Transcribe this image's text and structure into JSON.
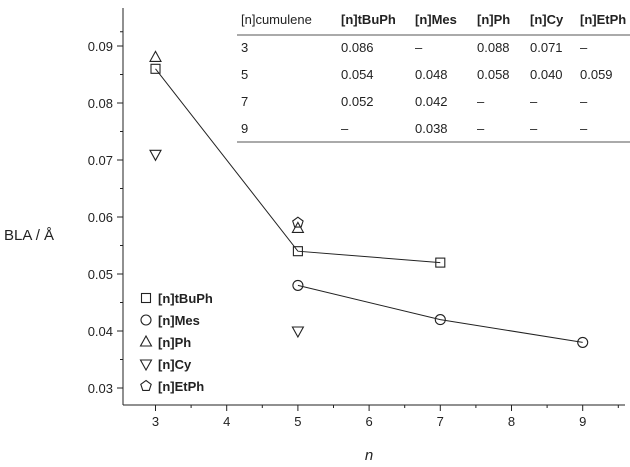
{
  "chart_data": {
    "type": "scatter",
    "xlabel": "n",
    "ylabel": "BLA / Å",
    "xlim": [
      2.5,
      9.5
    ],
    "ylim": [
      0.025,
      0.0925
    ],
    "xticks": [
      "3",
      "4",
      "5",
      "6",
      "7",
      "8",
      "9"
    ],
    "yticks": [
      "0.03",
      "0.04",
      "0.05",
      "0.06",
      "0.07",
      "0.08",
      "0.09"
    ],
    "series": [
      {
        "name": "[n]tBuPh",
        "marker": "square",
        "connected": true,
        "x": [
          3,
          5,
          7
        ],
        "y": [
          0.086,
          0.054,
          0.052
        ]
      },
      {
        "name": "[n]Mes",
        "marker": "circle",
        "connected": true,
        "x": [
          5,
          7,
          9
        ],
        "y": [
          0.048,
          0.042,
          0.038
        ]
      },
      {
        "name": "[n]Ph",
        "marker": "triangle-up",
        "connected": false,
        "x": [
          3,
          5
        ],
        "y": [
          0.088,
          0.058
        ]
      },
      {
        "name": "[n]Cy",
        "marker": "triangle-down",
        "connected": false,
        "x": [
          3,
          5
        ],
        "y": [
          0.071,
          0.04
        ]
      },
      {
        "name": "[n]EtPh",
        "marker": "pentagon",
        "connected": false,
        "x": [
          5
        ],
        "y": [
          0.059
        ]
      }
    ],
    "legend_position": "bottom-left",
    "grid": false,
    "table": {
      "columns": [
        "[n]cumulene",
        "[n]tBuPh",
        "[n]Mes",
        "[n]Ph",
        "[n]Cy",
        "[n]EtPh"
      ],
      "rows": [
        [
          "3",
          "0.086",
          "–",
          "0.088",
          "0.071",
          "–"
        ],
        [
          "5",
          "0.054",
          "0.048",
          "0.058",
          "0.040",
          "0.059"
        ],
        [
          "7",
          "0.052",
          "0.042",
          "–",
          "–",
          "–"
        ],
        [
          "9",
          "–",
          "0.038",
          "–",
          "–",
          "–"
        ]
      ]
    }
  }
}
